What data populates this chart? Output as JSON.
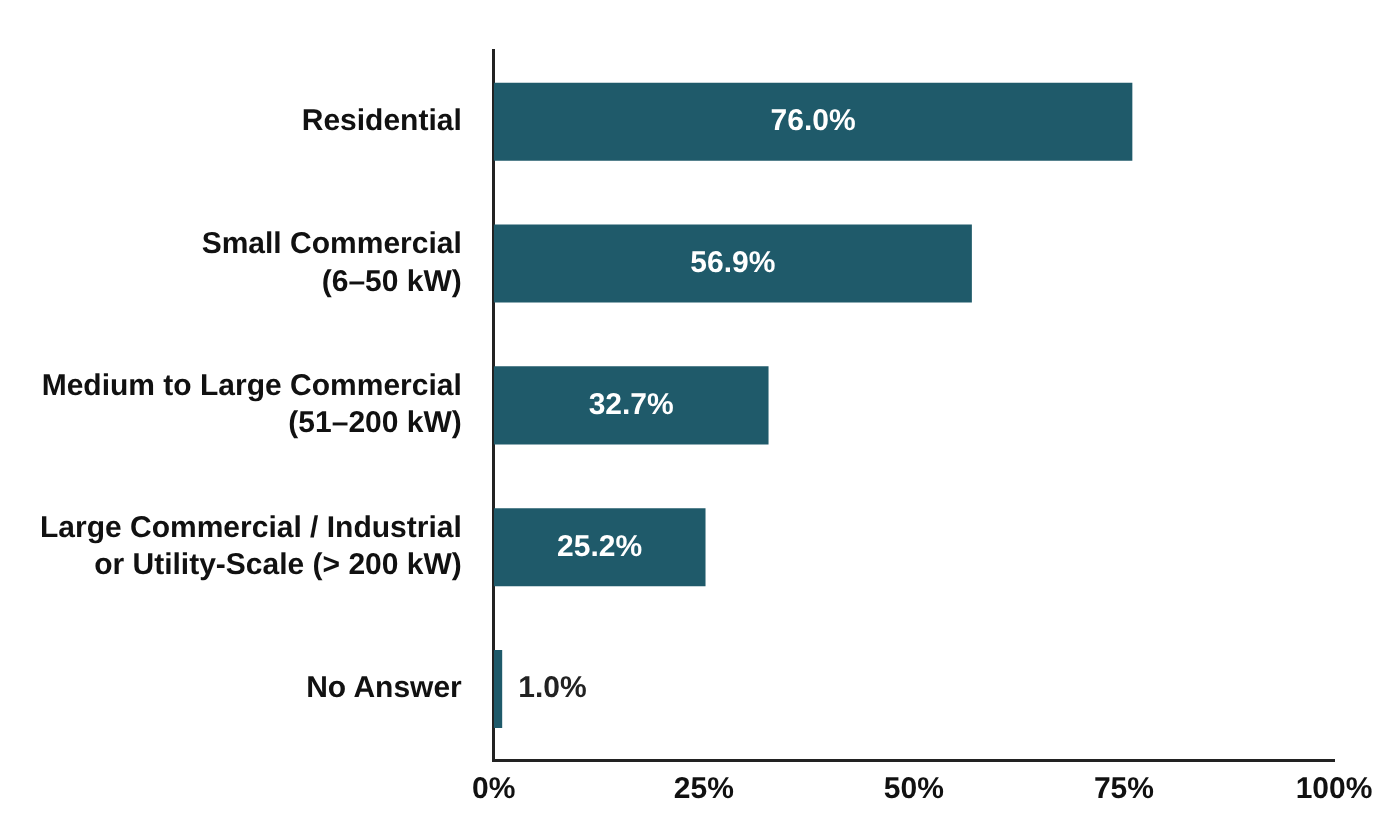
{
  "chart_data": {
    "type": "bar",
    "orientation": "horizontal",
    "categories": [
      "Residential",
      "Small Commercial\n(6–50 kW)",
      "Medium to Large Commercial\n(51–200 kW)",
      "Large Commercial / Industrial\nor Utility-Scale (> 200 kW)",
      "No Answer"
    ],
    "values": [
      76.0,
      56.9,
      32.7,
      25.2,
      1.0
    ],
    "value_labels": [
      "76.0%",
      "56.9%",
      "32.7%",
      "25.2%",
      "1.0%"
    ],
    "color": "#1f5a6a",
    "xlim": [
      0,
      100
    ],
    "xticks": [
      {
        "value": 0,
        "label": "0%"
      },
      {
        "value": 25,
        "label": "25%"
      },
      {
        "value": 50,
        "label": "50%"
      },
      {
        "value": 75,
        "label": "75%"
      },
      {
        "value": 100,
        "label": "100%"
      }
    ],
    "grid": false,
    "legend": false
  }
}
